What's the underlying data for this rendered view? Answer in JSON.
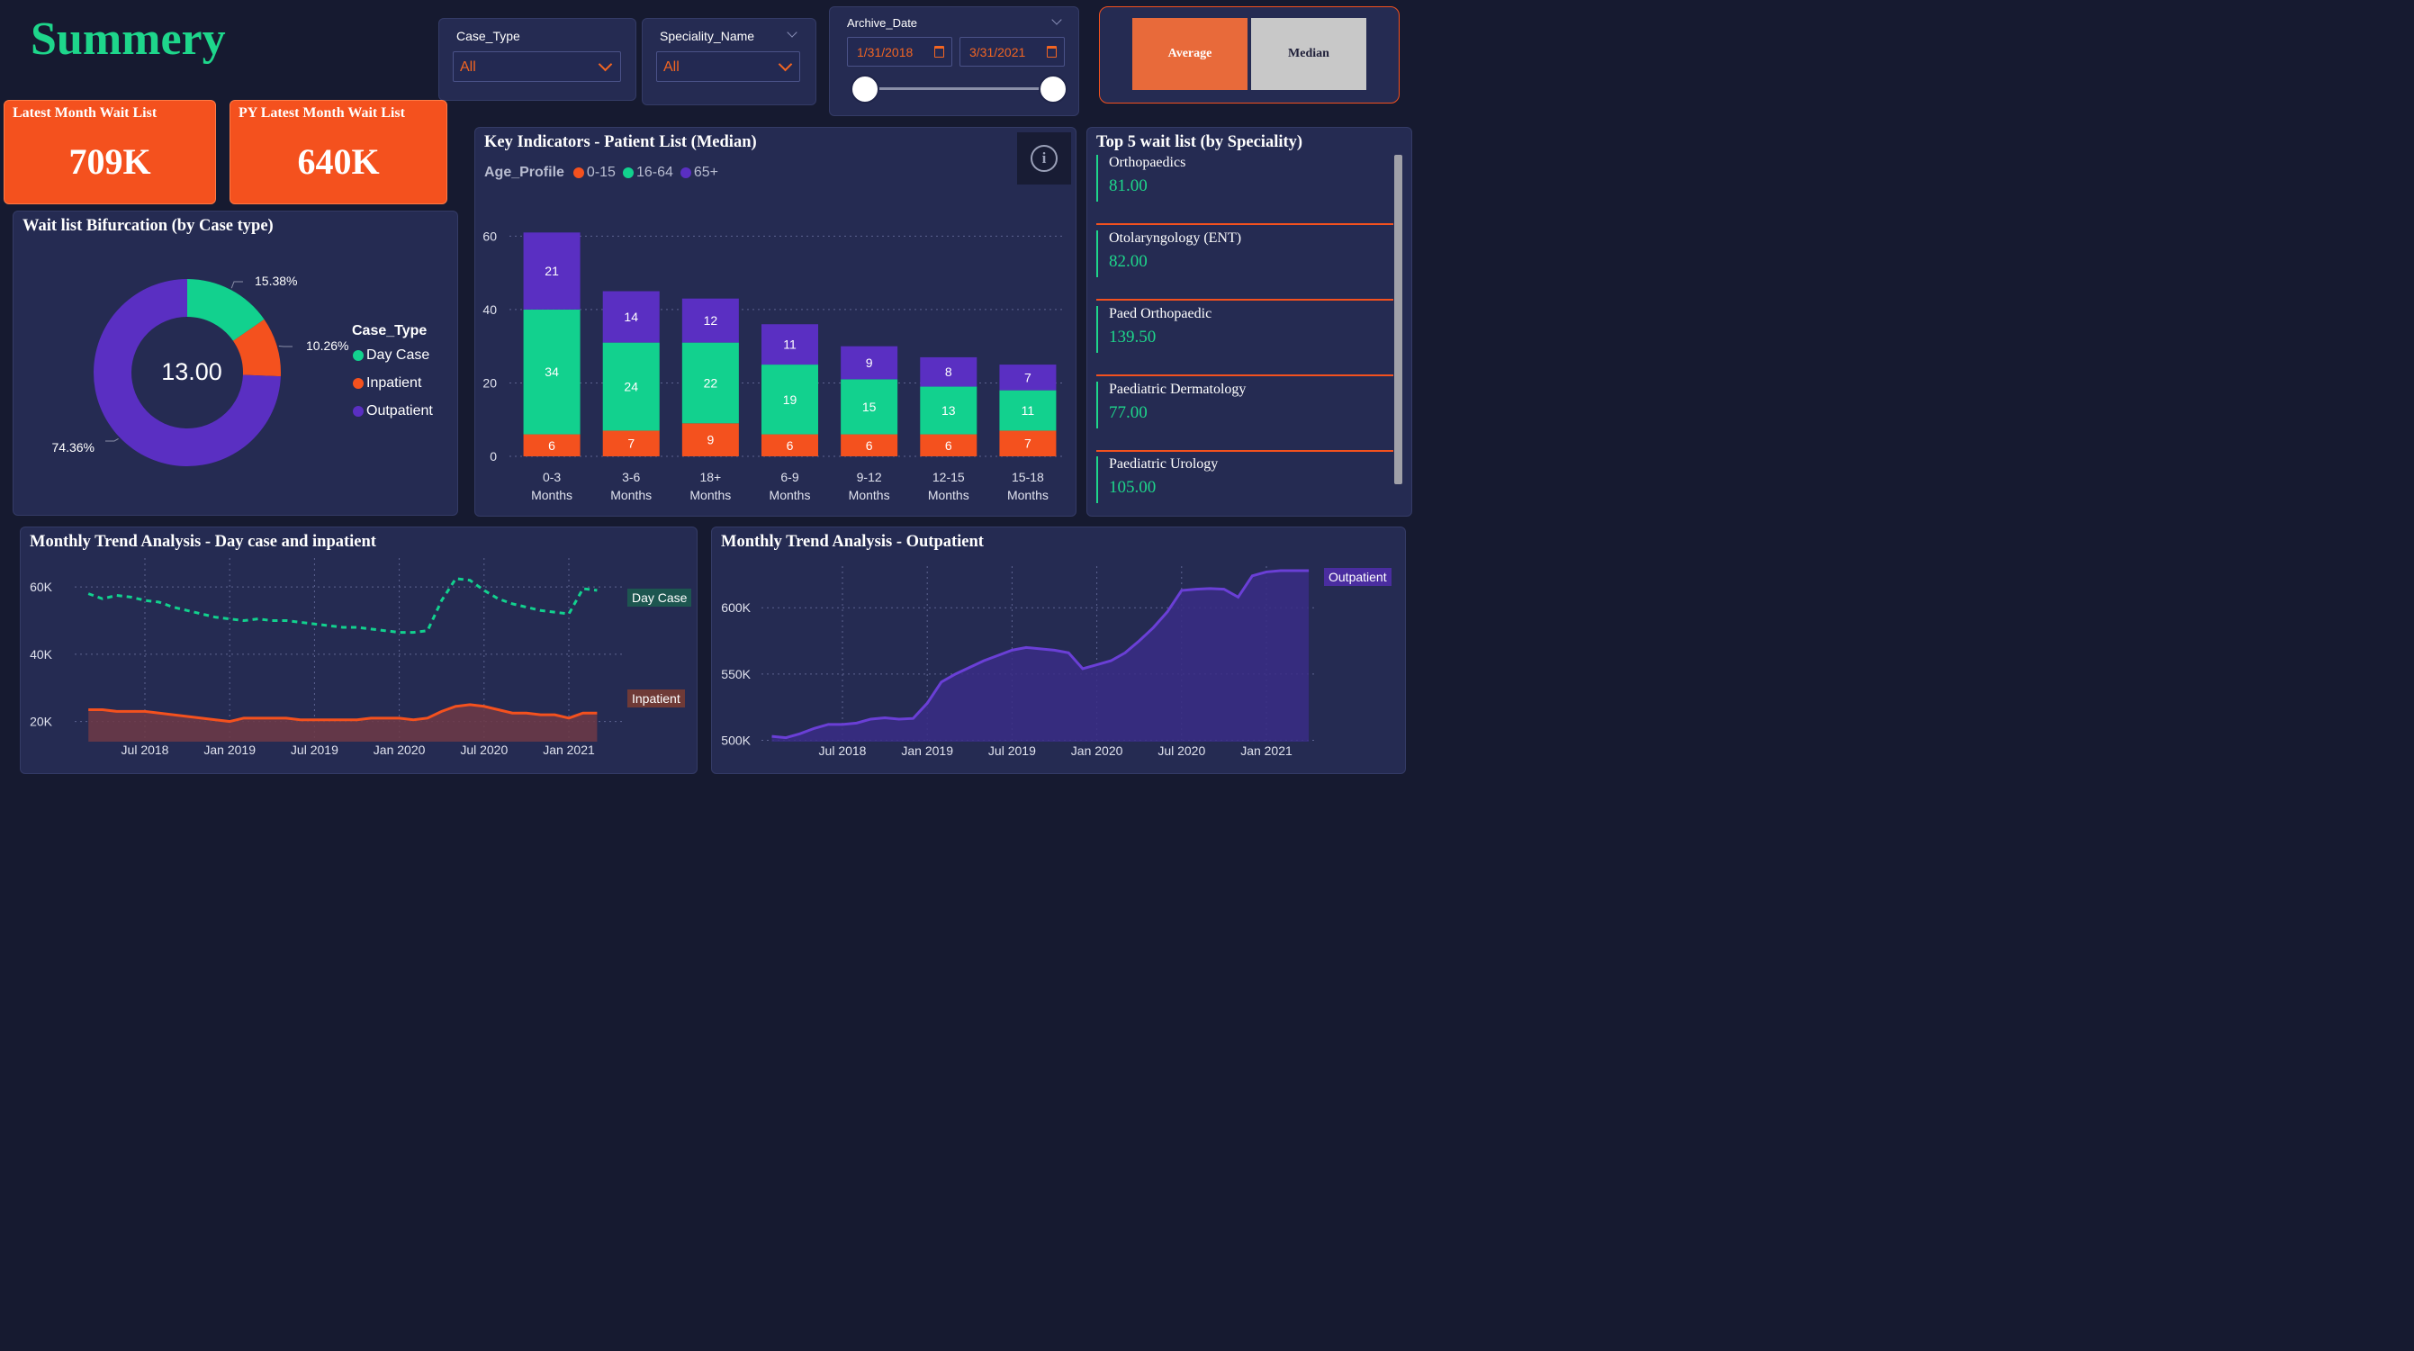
{
  "page_title": "Summery",
  "slicers": {
    "case_type": {
      "label": "Case_Type",
      "value": "All"
    },
    "speciality": {
      "label": "Speciality_Name",
      "value": "All"
    },
    "archive_date": {
      "label": "Archive_Date",
      "from": "1/31/2018",
      "to": "3/31/2021"
    }
  },
  "toggle": {
    "average": "Average",
    "median": "Median",
    "selected": "Average"
  },
  "kpis": [
    {
      "label": "Latest Month Wait List",
      "value": "709K"
    },
    {
      "label": "PY Latest Month Wait List",
      "value": "640K"
    }
  ],
  "donut": {
    "title": "Wait list Bifurcation (by Case type)",
    "center_value": "13.00",
    "legend_title": "Case_Type",
    "slices": [
      {
        "name": "Day Case",
        "percent": 15.38,
        "label": "15.38%",
        "color": "#12d18e"
      },
      {
        "name": "Inpatient",
        "percent": 10.26,
        "label": "10.26%",
        "color": "#f4511e"
      },
      {
        "name": "Outpatient",
        "percent": 74.36,
        "label": "74.36%",
        "color": "#5a2fc2"
      }
    ]
  },
  "key_indicators": {
    "title": "Key Indicators - Patient List (Median)",
    "legend_title": "Age_Profile",
    "info_icon": "info-icon"
  },
  "top5": {
    "title": "Top 5 wait list (by Speciality)",
    "items": [
      {
        "name": "Orthopaedics",
        "value": "81.00"
      },
      {
        "name": "Otolaryngology (ENT)",
        "value": "82.00"
      },
      {
        "name": "Paed Orthopaedic",
        "value": "139.50"
      },
      {
        "name": "Paediatric Dermatology",
        "value": "77.00"
      },
      {
        "name": "Paediatric Urology",
        "value": "105.00"
      }
    ]
  },
  "trend_day": {
    "title": "Monthly Trend Analysis - Day case and inpatient",
    "day_label": "Day Case",
    "inpatient_label": "Inpatient"
  },
  "trend_out": {
    "title": "Monthly Trend Analysis - Outpatient",
    "out_label": "Outpatient"
  },
  "chart_data": [
    {
      "type": "bar",
      "stacked": true,
      "title": "Key Indicators - Patient List (Median)",
      "categories": [
        "0-3 Months",
        "3-6 Months",
        "18+ Months",
        "6-9 Months",
        "9-12 Months",
        "12-15 Months",
        "15-18 Months"
      ],
      "category_lines": [
        [
          "0-3",
          "Months"
        ],
        [
          "3-6",
          "Months"
        ],
        [
          "18+",
          "Months"
        ],
        [
          "6-9",
          "Months"
        ],
        [
          "9-12",
          "Months"
        ],
        [
          "12-15",
          "Months"
        ],
        [
          "15-18",
          "Months"
        ]
      ],
      "series": [
        {
          "name": "0-15",
          "color": "#f4511e",
          "values": [
            6,
            7,
            9,
            6,
            6,
            6,
            7
          ]
        },
        {
          "name": "16-64",
          "color": "#12d18e",
          "values": [
            34,
            24,
            22,
            19,
            15,
            13,
            11
          ]
        },
        {
          "name": "65+",
          "color": "#5a2fc2",
          "values": [
            21,
            14,
            12,
            11,
            9,
            8,
            7
          ]
        }
      ],
      "ylim": [
        0,
        65
      ],
      "yticks": [
        0,
        20,
        40,
        60
      ],
      "grid": true
    },
    {
      "type": "pie",
      "title": "Wait list Bifurcation (by Case type)",
      "categories": [
        "Day Case",
        "Inpatient",
        "Outpatient"
      ],
      "values": [
        15.38,
        10.26,
        74.36
      ]
    },
    {
      "type": "line",
      "title": "Monthly Trend Analysis - Day case and inpatient",
      "x": [
        "2018-03",
        "2018-04",
        "2018-05",
        "2018-06",
        "2018-07",
        "2018-08",
        "2018-09",
        "2018-10",
        "2018-11",
        "2018-12",
        "2019-01",
        "2019-02",
        "2019-03",
        "2019-04",
        "2019-05",
        "2019-06",
        "2019-07",
        "2019-08",
        "2019-09",
        "2019-10",
        "2019-11",
        "2019-12",
        "2020-01",
        "2020-02",
        "2020-03",
        "2020-04",
        "2020-05",
        "2020-06",
        "2020-07",
        "2020-08",
        "2020-09",
        "2020-10",
        "2020-11",
        "2020-12",
        "2021-01",
        "2021-02",
        "2021-03"
      ],
      "xticks": [
        "Jul 2018",
        "Jan 2019",
        "Jul 2019",
        "Jan 2020",
        "Jul 2020",
        "Jan 2021"
      ],
      "yticks": [
        "20K",
        "40K",
        "60K"
      ],
      "ylim": [
        14000,
        67000
      ],
      "series": [
        {
          "name": "Day Case",
          "color": "#12d18e",
          "dashed": true,
          "values": [
            58000,
            56500,
            57500,
            57000,
            56000,
            55500,
            54000,
            53000,
            52000,
            51000,
            50500,
            50000,
            50500,
            50000,
            50000,
            49500,
            49000,
            48500,
            48000,
            48000,
            47500,
            47000,
            46500,
            46500,
            47000,
            56000,
            62500,
            62000,
            59000,
            56500,
            55000,
            54000,
            53000,
            52500,
            52000,
            59500,
            59000
          ]
        },
        {
          "name": "Inpatient",
          "color": "#f4511e",
          "area": true,
          "values": [
            23500,
            23500,
            23000,
            23000,
            23000,
            22500,
            22000,
            21500,
            21000,
            20500,
            20000,
            21000,
            21000,
            21000,
            21000,
            20500,
            20500,
            20500,
            20500,
            20500,
            21000,
            21000,
            21000,
            20500,
            21000,
            23000,
            24500,
            25000,
            24500,
            23500,
            22500,
            22500,
            22000,
            22000,
            21000,
            22500,
            22500
          ]
        }
      ]
    },
    {
      "type": "area",
      "title": "Monthly Trend Analysis - Outpatient",
      "x": [
        "2018-02",
        "2018-03",
        "2018-04",
        "2018-05",
        "2018-06",
        "2018-07",
        "2018-08",
        "2018-09",
        "2018-10",
        "2018-11",
        "2018-12",
        "2019-01",
        "2019-02",
        "2019-03",
        "2019-04",
        "2019-05",
        "2019-06",
        "2019-07",
        "2019-08",
        "2019-09",
        "2019-10",
        "2019-11",
        "2019-12",
        "2020-01",
        "2020-02",
        "2020-03",
        "2020-04",
        "2020-05",
        "2020-06",
        "2020-07",
        "2020-08",
        "2020-09",
        "2020-10",
        "2020-11",
        "2020-12",
        "2021-01",
        "2021-02",
        "2021-03",
        "2021-04"
      ],
      "xticks": [
        "Jul 2018",
        "Jan 2019",
        "Jul 2019",
        "Jan 2020",
        "Jul 2020",
        "Jan 2021"
      ],
      "yticks": [
        "500K",
        "550K",
        "600K"
      ],
      "ylim": [
        499000,
        630000
      ],
      "series": [
        {
          "name": "Outpatient",
          "color": "#6a3fd6",
          "values": [
            503000,
            502000,
            505000,
            509000,
            512000,
            512000,
            513000,
            516000,
            517000,
            516000,
            516500,
            528000,
            544000,
            550000,
            555000,
            560000,
            564000,
            568000,
            570000,
            569000,
            568000,
            566000,
            554000,
            557000,
            560000,
            566000,
            575000,
            585000,
            597000,
            613000,
            614000,
            614500,
            614000,
            608000,
            624000,
            627000,
            628000,
            628000,
            628000
          ]
        }
      ]
    }
  ]
}
